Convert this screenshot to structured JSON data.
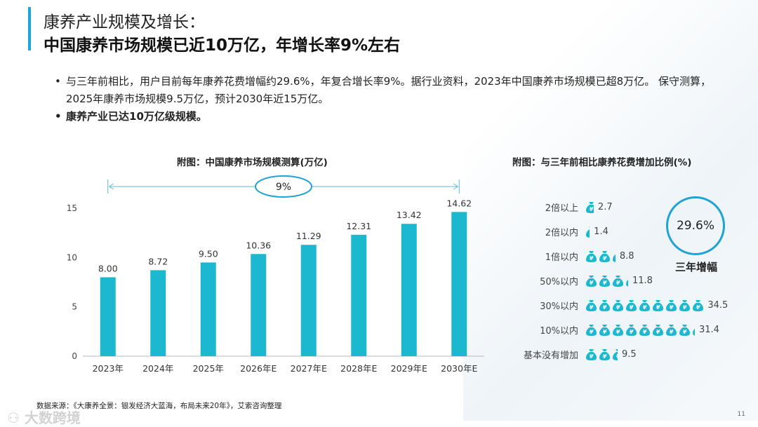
{
  "header": {
    "title_line1": "康养产业规模及增长：",
    "title_line2": "中国康养市场规模已近10万亿，年增长率9%左右"
  },
  "bullets": [
    "与三年前相比，用户目前每年康养花费增幅约29.6%，年复合增长率9%。据行业资料，2023年中国康养市场规模已超8万亿。 保守测算，2025年康养市场规模9.5万亿，预计2030年近15万亿。",
    "康养产业已达10万亿级规模。"
  ],
  "chart_data": [
    {
      "type": "bar",
      "title": "附图：中国康养市场规模测算(万亿)",
      "categories": [
        "2023年",
        "2024年",
        "2025年",
        "2026年E",
        "2027年E",
        "2028年E",
        "2029年E",
        "2030年E"
      ],
      "values": [
        8.0,
        8.72,
        9.5,
        10.36,
        11.29,
        12.31,
        13.42,
        14.62
      ],
      "ylim": [
        0,
        15
      ],
      "yticks": [
        0,
        5,
        10,
        15
      ],
      "annotation": "9%",
      "color": "#1bb8cf",
      "grid": false
    },
    {
      "type": "pictogram",
      "title": "附图：与三年前相比康养花费增加比例(%)",
      "categories": [
        "2倍以上",
        "2倍以内",
        "1倍以内",
        "50%以内",
        "30%以内",
        "10%以内",
        "基本没有增加"
      ],
      "values": [
        2.7,
        1.4,
        8.8,
        11.8,
        34.5,
        31.4,
        9.5
      ],
      "icon": "money-bag-icon",
      "color": "#1bb8cf"
    }
  ],
  "highlight": {
    "value": "29.6%",
    "label": "三年增幅"
  },
  "footer": {
    "source": "数据来源：《大康养全景：银发经济大蓝海，布局未来20年》，艾索咨询整理",
    "watermark": "大数跨境",
    "page": "11"
  }
}
